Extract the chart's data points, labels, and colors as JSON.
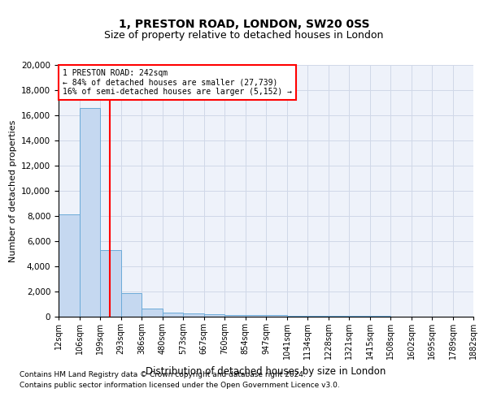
{
  "title1": "1, PRESTON ROAD, LONDON, SW20 0SS",
  "title2": "Size of property relative to detached houses in London",
  "xlabel": "Distribution of detached houses by size in London",
  "ylabel": "Number of detached properties",
  "annotation_line1": "1 PRESTON ROAD: 242sqm",
  "annotation_line2": "← 84% of detached houses are smaller (27,739)",
  "annotation_line3": "16% of semi-detached houses are larger (5,152) →",
  "bar_color": "#c5d8f0",
  "bar_edge_color": "#6baad8",
  "vline_color": "red",
  "vline_x": 242,
  "categories": [
    "12sqm",
    "106sqm",
    "199sqm",
    "293sqm",
    "386sqm",
    "480sqm",
    "573sqm",
    "667sqm",
    "760sqm",
    "854sqm",
    "947sqm",
    "1041sqm",
    "1134sqm",
    "1228sqm",
    "1321sqm",
    "1415sqm",
    "1508sqm",
    "1602sqm",
    "1695sqm",
    "1789sqm",
    "1882sqm"
  ],
  "bin_edges": [
    12,
    106,
    199,
    293,
    386,
    480,
    573,
    667,
    760,
    854,
    947,
    1041,
    1134,
    1228,
    1321,
    1415,
    1508,
    1602,
    1695,
    1789,
    1882
  ],
  "values": [
    8100,
    16600,
    5300,
    1850,
    650,
    330,
    230,
    190,
    160,
    130,
    100,
    80,
    65,
    55,
    40,
    35,
    28,
    22,
    18,
    15
  ],
  "ylim": [
    0,
    20000
  ],
  "yticks": [
    0,
    2000,
    4000,
    6000,
    8000,
    10000,
    12000,
    14000,
    16000,
    18000,
    20000
  ],
  "grid_color": "#d0d8e8",
  "background_color": "#eef2fa",
  "footer1": "Contains HM Land Registry data © Crown copyright and database right 2024.",
  "footer2": "Contains public sector information licensed under the Open Government Licence v3.0."
}
